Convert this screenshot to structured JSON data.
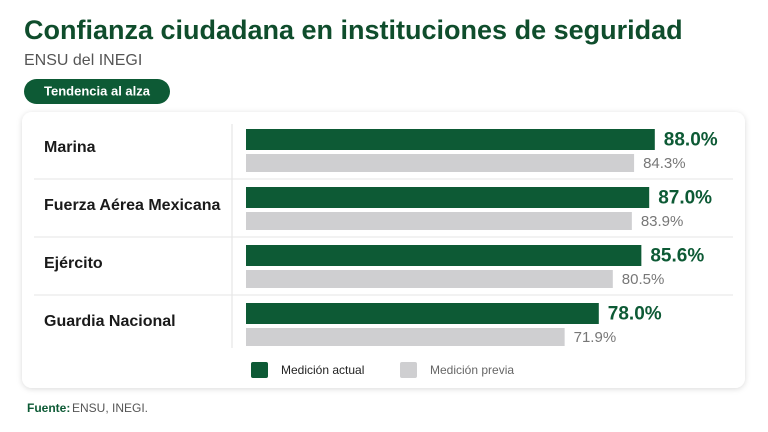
{
  "chart_data": {
    "type": "bar",
    "orientation": "horizontal",
    "title": "Confianza ciudadana en instituciones de seguridad",
    "subtitle": "ENSU del INEGI",
    "badge": "Tendencia al alza",
    "categories": [
      "Marina",
      "Fuerza Aérea Mexicana",
      "Ejército",
      "Guardia Nacional"
    ],
    "series": [
      {
        "name": "Medición actual",
        "color": "#0d5a35",
        "values": [
          88.0,
          87.0,
          85.6,
          78.0
        ],
        "value_labels": [
          "88.0%",
          "87.0%",
          "85.6%",
          "78.0%"
        ]
      },
      {
        "name": "Medición previa",
        "color": "#cfcfd1",
        "values": [
          84.3,
          83.9,
          80.5,
          71.9
        ],
        "value_labels": [
          "84.3%",
          "83.9%",
          "80.5%",
          "71.9%"
        ]
      }
    ],
    "xlim": [
      15,
      100
    ],
    "source": {
      "label": "Fuente:",
      "text": "ENSU, INEGI."
    }
  }
}
